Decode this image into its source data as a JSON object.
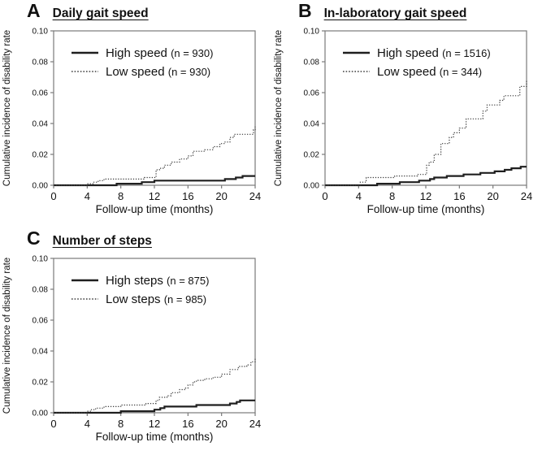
{
  "figure": {
    "background": "#ffffff"
  },
  "theme": {
    "frame_color": "#7a7a7a",
    "tick_color": "#7a7a7a",
    "text_color": "#111111",
    "solid_line_color": "#1f1f1f",
    "dotted_line_color": "#3f3f3f"
  },
  "chart_data": [
    {
      "type": "line",
      "panel_letter": "A",
      "title": "Daily gait speed",
      "xlabel": "Follow-up time (months)",
      "ylabel": "Cumulative incidence of disability rate",
      "xlim": [
        0,
        24
      ],
      "ylim": [
        0,
        0.1
      ],
      "xticks": [
        0,
        4,
        8,
        12,
        16,
        20,
        24
      ],
      "yticks": [
        0,
        0.02,
        0.04,
        0.06,
        0.08,
        0.1
      ],
      "grid": false,
      "step": true,
      "legend_position": "top-left",
      "series": [
        {
          "name": "High speed (n = 930)",
          "label": "High speed",
          "n_label": "(n = 930)",
          "line_style": "solid",
          "points": [
            [
              0,
              0
            ],
            [
              7.5,
              0.001
            ],
            [
              10.5,
              0.002
            ],
            [
              12,
              0.003
            ],
            [
              20.4,
              0.004
            ],
            [
              21.7,
              0.005
            ],
            [
              22.5,
              0.006
            ],
            [
              24,
              0.006
            ]
          ]
        },
        {
          "name": "Low speed (n = 930)",
          "label": "Low speed",
          "n_label": "(n = 930)",
          "line_style": "dotted",
          "points": [
            [
              0,
              0
            ],
            [
              4,
              0.001
            ],
            [
              4.7,
              0.002
            ],
            [
              5.3,
              0.003
            ],
            [
              6,
              0.004
            ],
            [
              10.8,
              0.005
            ],
            [
              12.2,
              0.01
            ],
            [
              12.6,
              0.011
            ],
            [
              13.2,
              0.013
            ],
            [
              14,
              0.015
            ],
            [
              15,
              0.017
            ],
            [
              16,
              0.019
            ],
            [
              16.6,
              0.022
            ],
            [
              18,
              0.023
            ],
            [
              19,
              0.025
            ],
            [
              19.8,
              0.027
            ],
            [
              20.3,
              0.028
            ],
            [
              21,
              0.031
            ],
            [
              21.5,
              0.033
            ],
            [
              23.8,
              0.036
            ],
            [
              24,
              0.038
            ]
          ]
        }
      ]
    },
    {
      "type": "line",
      "panel_letter": "B",
      "title": "In-laboratory gait speed",
      "xlabel": "Follow-up time (months)",
      "ylabel": "Cumulative incidence of disability rate",
      "xlim": [
        0,
        24
      ],
      "ylim": [
        0,
        0.1
      ],
      "xticks": [
        0,
        4,
        8,
        12,
        16,
        20,
        24
      ],
      "yticks": [
        0,
        0.02,
        0.04,
        0.06,
        0.08,
        0.1
      ],
      "grid": false,
      "step": true,
      "legend_position": "top-left",
      "series": [
        {
          "name": "High speed (n = 1516)",
          "label": "High speed",
          "n_label": "(n = 1516)",
          "line_style": "solid",
          "points": [
            [
              0,
              0
            ],
            [
              6.2,
              0.001
            ],
            [
              8.9,
              0.002
            ],
            [
              11.2,
              0.003
            ],
            [
              12.5,
              0.004
            ],
            [
              13,
              0.005
            ],
            [
              14.5,
              0.006
            ],
            [
              16.5,
              0.007
            ],
            [
              18.5,
              0.008
            ],
            [
              20.2,
              0.009
            ],
            [
              21.4,
              0.01
            ],
            [
              22.2,
              0.011
            ],
            [
              23.3,
              0.012
            ],
            [
              24,
              0.012
            ]
          ]
        },
        {
          "name": "Low speed (n = 344)",
          "label": "Low speed",
          "n_label": "(n = 344)",
          "line_style": "dotted",
          "points": [
            [
              0,
              0
            ],
            [
              4.2,
              0.002
            ],
            [
              4.9,
              0.005
            ],
            [
              8.3,
              0.006
            ],
            [
              11,
              0.007
            ],
            [
              12.1,
              0.013
            ],
            [
              12.4,
              0.015
            ],
            [
              13,
              0.02
            ],
            [
              13.8,
              0.027
            ],
            [
              14.8,
              0.031
            ],
            [
              15.3,
              0.034
            ],
            [
              16,
              0.037
            ],
            [
              16.8,
              0.043
            ],
            [
              18.8,
              0.048
            ],
            [
              19.3,
              0.052
            ],
            [
              20.8,
              0.055
            ],
            [
              21.3,
              0.058
            ],
            [
              23.2,
              0.064
            ],
            [
              24,
              0.068
            ]
          ]
        }
      ]
    },
    {
      "type": "line",
      "panel_letter": "C",
      "title": "Number of steps",
      "xlabel": "Follow-up time (months)",
      "ylabel": "Cumulative incidence of disability rate",
      "xlim": [
        0,
        24
      ],
      "ylim": [
        0,
        0.1
      ],
      "xticks": [
        0,
        4,
        8,
        12,
        16,
        20,
        24
      ],
      "yticks": [
        0,
        0.02,
        0.04,
        0.06,
        0.08,
        0.1
      ],
      "grid": false,
      "step": true,
      "legend_position": "top-left",
      "series": [
        {
          "name": "High steps (n = 875)",
          "label": "High steps",
          "n_label": "(n = 875)",
          "line_style": "solid",
          "points": [
            [
              0,
              0
            ],
            [
              8,
              0.001
            ],
            [
              12,
              0.002
            ],
            [
              12.7,
              0.003
            ],
            [
              13.2,
              0.004
            ],
            [
              17,
              0.005
            ],
            [
              21,
              0.006
            ],
            [
              21.8,
              0.007
            ],
            [
              22.2,
              0.008
            ],
            [
              24,
              0.008
            ]
          ]
        },
        {
          "name": "Low steps (n = 985)",
          "label": "Low steps",
          "n_label": "(n = 985)",
          "line_style": "dotted",
          "points": [
            [
              0,
              0
            ],
            [
              4,
              0.001
            ],
            [
              4.5,
              0.002
            ],
            [
              5,
              0.003
            ],
            [
              6,
              0.004
            ],
            [
              8,
              0.005
            ],
            [
              11,
              0.006
            ],
            [
              12.2,
              0.008
            ],
            [
              12.6,
              0.01
            ],
            [
              13.5,
              0.011
            ],
            [
              14,
              0.013
            ],
            [
              15,
              0.015
            ],
            [
              15.6,
              0.016
            ],
            [
              16,
              0.018
            ],
            [
              16.6,
              0.02
            ],
            [
              17,
              0.021
            ],
            [
              18,
              0.022
            ],
            [
              19,
              0.023
            ],
            [
              20,
              0.025
            ],
            [
              21,
              0.028
            ],
            [
              22,
              0.03
            ],
            [
              23,
              0.031
            ],
            [
              23.5,
              0.033
            ],
            [
              24,
              0.035
            ]
          ]
        }
      ]
    }
  ]
}
